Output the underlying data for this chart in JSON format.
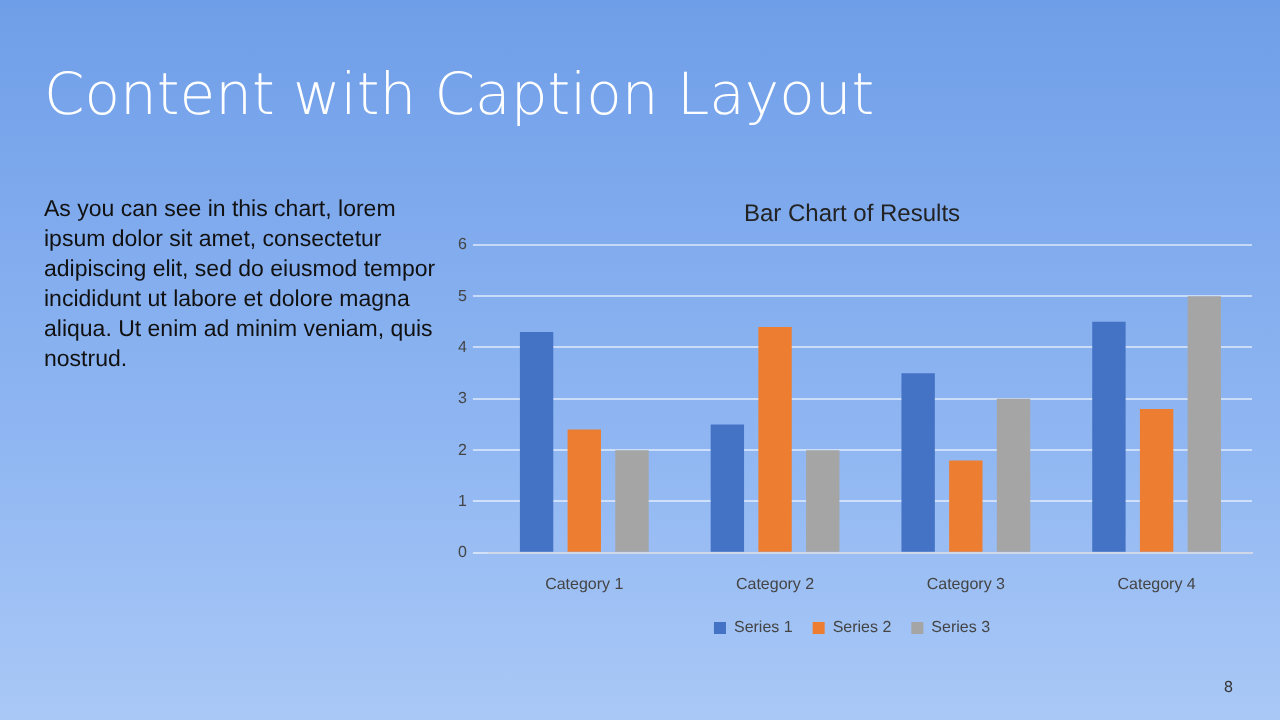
{
  "chart_data": {
    "type": "bar",
    "title": "Content with Caption Layout",
    "subtitle": "Bar Chart of Results",
    "categories": [
      "Category 1",
      "Category 2",
      "Category 3",
      "Category 4"
    ],
    "series": [
      {
        "name": "Series 1",
        "color": "#4472c4",
        "values": [
          4.3,
          2.5,
          3.5,
          4.5
        ]
      },
      {
        "name": "Series 2",
        "color": "#ed7d31",
        "values": [
          2.4,
          4.4,
          1.8,
          2.8
        ]
      },
      {
        "name": "Series 3",
        "color": "#a5a5a5",
        "values": [
          2,
          2,
          3,
          5
        ]
      }
    ],
    "ylim": [
      0,
      6
    ],
    "yticks": [
      0,
      1,
      2,
      3,
      4,
      5,
      6
    ],
    "grid": "y",
    "legend": "bottom",
    "annotations": [
      "As you can see in this chart, lorem ipsum dolor sit amet, consectetur adipiscing elit, sed do eiusmod tempor incididunt ut labore et dolore magna aliqua. Ut enim ad minim veniam, quis nostrud.",
      "8"
    ]
  }
}
